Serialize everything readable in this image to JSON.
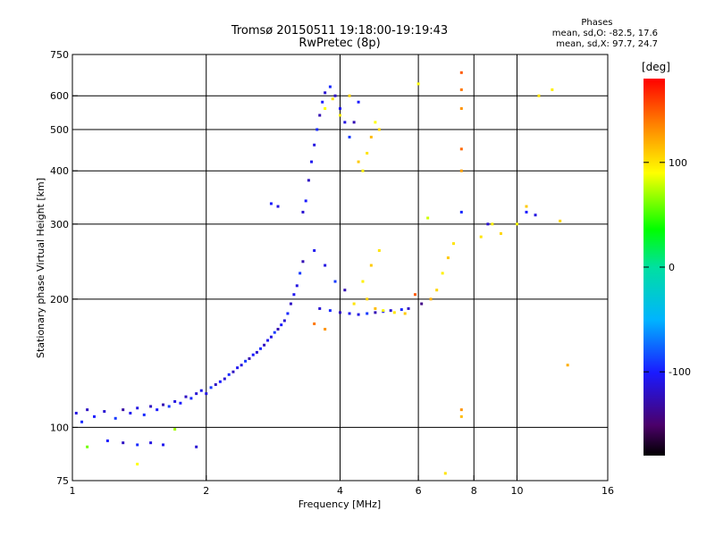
{
  "header": {
    "title": "Tromsø 20150511 19:18:00-19:19:43",
    "subtitle": "RwPretec (8p)"
  },
  "phase_info": {
    "heading": "Phases",
    "line_o": "mean, sd,O: -82.5, 17.6",
    "line_x": "mean, sd,X: 97.7, 24.7"
  },
  "colorbar": {
    "unit": "[deg]",
    "ticks": [
      "100",
      "0",
      "-100"
    ],
    "tick_values": [
      100,
      0,
      -100
    ],
    "range": [
      -180,
      180
    ]
  },
  "chart_data": {
    "type": "scatter",
    "title": "Tromsø 20150511 19:18:00-19:19:43",
    "subtitle": "RwPretec (8p)",
    "xlabel": "Frequency [MHz]",
    "ylabel": "Stationary phase Virtual Height [km]",
    "x_scale": "log",
    "y_scale": "log",
    "xlim": [
      1,
      16
    ],
    "ylim": [
      75,
      750
    ],
    "x_ticks": [
      1,
      2,
      4,
      6,
      8,
      10,
      16
    ],
    "y_ticks": [
      75,
      100,
      200,
      300,
      400,
      500,
      600,
      750
    ],
    "grid": true,
    "color_scale": "phase [deg]",
    "series": [
      {
        "name": "O",
        "mean_phase": -82.5,
        "sd_phase": 17.6,
        "points": [
          [
            1.02,
            108,
            -110
          ],
          [
            1.05,
            103,
            -95
          ],
          [
            1.08,
            110,
            -120
          ],
          [
            1.12,
            106,
            -100
          ],
          [
            1.18,
            109,
            -115
          ],
          [
            1.25,
            105,
            -90
          ],
          [
            1.3,
            110,
            -130
          ],
          [
            1.35,
            108,
            -105
          ],
          [
            1.4,
            111,
            -110
          ],
          [
            1.45,
            107,
            -95
          ],
          [
            1.5,
            112,
            -120
          ],
          [
            1.55,
            110,
            -100
          ],
          [
            1.6,
            113,
            -125
          ],
          [
            1.65,
            112,
            -90
          ],
          [
            1.7,
            115,
            -110
          ],
          [
            1.75,
            114,
            -100
          ],
          [
            1.8,
            118,
            -120
          ],
          [
            1.85,
            117,
            -95
          ],
          [
            1.9,
            120,
            -115
          ],
          [
            1.95,
            122,
            -105
          ],
          [
            2.0,
            120,
            -110
          ],
          [
            2.05,
            124,
            -90
          ],
          [
            2.1,
            126,
            -120
          ],
          [
            2.15,
            128,
            -100
          ],
          [
            2.2,
            130,
            -115
          ],
          [
            2.25,
            133,
            -95
          ],
          [
            2.3,
            135,
            -120
          ],
          [
            2.35,
            138,
            -105
          ],
          [
            2.4,
            140,
            -110
          ],
          [
            2.45,
            143,
            -90
          ],
          [
            2.5,
            145,
            -125
          ],
          [
            2.55,
            148,
            -100
          ],
          [
            2.6,
            150,
            -115
          ],
          [
            2.65,
            153,
            -95
          ],
          [
            2.7,
            156,
            -120
          ],
          [
            2.75,
            160,
            -105
          ],
          [
            2.8,
            163,
            -110
          ],
          [
            2.85,
            167,
            -90
          ],
          [
            2.9,
            170,
            -125
          ],
          [
            2.95,
            174,
            -100
          ],
          [
            3.0,
            178,
            -115
          ],
          [
            3.05,
            185,
            -95
          ],
          [
            3.1,
            195,
            -120
          ],
          [
            3.15,
            205,
            -105
          ],
          [
            3.2,
            215,
            -110
          ],
          [
            3.25,
            230,
            -90
          ],
          [
            3.3,
            245,
            -125
          ],
          [
            3.3,
            320,
            -115
          ],
          [
            3.35,
            340,
            -100
          ],
          [
            3.4,
            380,
            -120
          ],
          [
            3.45,
            420,
            -105
          ],
          [
            3.5,
            460,
            -110
          ],
          [
            3.55,
            500,
            -95
          ],
          [
            3.6,
            540,
            -125
          ],
          [
            3.65,
            580,
            -100
          ],
          [
            3.7,
            610,
            -115
          ],
          [
            3.8,
            630,
            -95
          ],
          [
            3.9,
            600,
            -120
          ],
          [
            4.0,
            560,
            -105
          ],
          [
            4.1,
            520,
            -110
          ],
          [
            4.2,
            480,
            -90
          ],
          [
            4.3,
            520,
            -125
          ],
          [
            4.4,
            580,
            -100
          ],
          [
            3.6,
            190,
            -115
          ],
          [
            3.8,
            188,
            -95
          ],
          [
            4.0,
            186,
            -120
          ],
          [
            4.2,
            185,
            -105
          ],
          [
            4.4,
            184,
            -110
          ],
          [
            4.6,
            185,
            -90
          ],
          [
            4.8,
            186,
            -125
          ],
          [
            5.0,
            187,
            -100
          ],
          [
            5.2,
            188,
            -115
          ],
          [
            5.5,
            189,
            -95
          ],
          [
            5.7,
            190,
            -120
          ],
          [
            3.5,
            260,
            -105
          ],
          [
            3.7,
            240,
            -110
          ],
          [
            3.9,
            220,
            -90
          ],
          [
            4.1,
            210,
            -125
          ],
          [
            1.2,
            93,
            -100
          ],
          [
            1.3,
            92,
            -120
          ],
          [
            1.4,
            91,
            -95
          ],
          [
            1.5,
            92,
            -110
          ],
          [
            1.6,
            91,
            -105
          ],
          [
            1.9,
            90,
            -115
          ],
          [
            2.8,
            335,
            -100
          ],
          [
            2.9,
            330,
            -110
          ],
          [
            7.5,
            320,
            -95
          ],
          [
            8.6,
            300,
            -115
          ],
          [
            10.5,
            320,
            -100
          ],
          [
            11.0,
            315,
            -110
          ]
        ]
      },
      {
        "name": "X",
        "mean_phase": 97.7,
        "sd_phase": 24.7,
        "points": [
          [
            3.7,
            560,
            90
          ],
          [
            3.85,
            590,
            100
          ],
          [
            4.0,
            540,
            95
          ],
          [
            4.2,
            600,
            105
          ],
          [
            4.4,
            420,
            110
          ],
          [
            4.5,
            400,
            95
          ],
          [
            4.6,
            440,
            100
          ],
          [
            4.7,
            480,
            115
          ],
          [
            4.8,
            520,
            90
          ],
          [
            4.9,
            500,
            105
          ],
          [
            4.9,
            260,
            100
          ],
          [
            4.7,
            240,
            110
          ],
          [
            4.5,
            220,
            95
          ],
          [
            4.6,
            200,
            105
          ],
          [
            4.3,
            195,
            100
          ],
          [
            4.8,
            190,
            115
          ],
          [
            5.0,
            188,
            90
          ],
          [
            5.3,
            186,
            100
          ],
          [
            5.6,
            185,
            110
          ],
          [
            3.5,
            175,
            140
          ],
          [
            3.7,
            170,
            130
          ],
          [
            6.4,
            200,
            120
          ],
          [
            6.6,
            210,
            105
          ],
          [
            6.8,
            230,
            95
          ],
          [
            7.0,
            250,
            110
          ],
          [
            7.2,
            270,
            100
          ],
          [
            7.5,
            680,
            150
          ],
          [
            7.5,
            620,
            140
          ],
          [
            7.5,
            560,
            130
          ],
          [
            7.5,
            450,
            145
          ],
          [
            7.5,
            400,
            125
          ],
          [
            7.5,
            110,
            130
          ],
          [
            7.5,
            106,
            115
          ],
          [
            8.3,
            280,
            100
          ],
          [
            8.8,
            300,
            95
          ],
          [
            9.2,
            285,
            105
          ],
          [
            10.0,
            300,
            90
          ],
          [
            10.5,
            330,
            110
          ],
          [
            11.2,
            600,
            100
          ],
          [
            12.0,
            620,
            95
          ],
          [
            12.5,
            305,
            105
          ],
          [
            13.0,
            140,
            120
          ],
          [
            6.3,
            310,
            80
          ],
          [
            6.0,
            640,
            90
          ],
          [
            6.9,
            78,
            100
          ],
          [
            1.08,
            90,
            60
          ],
          [
            1.4,
            82,
            90
          ],
          [
            1.7,
            99,
            70
          ],
          [
            5.9,
            205,
            150
          ],
          [
            6.1,
            195,
            -140
          ]
        ]
      }
    ]
  }
}
